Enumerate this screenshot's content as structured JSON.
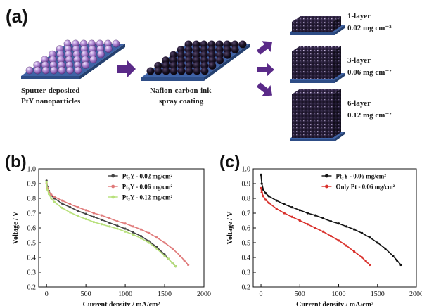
{
  "panel_a": {
    "label": "(a)",
    "step1_caption": [
      "Sputter-deposited",
      "PtY nanoparticles"
    ],
    "step2_caption": [
      "Nafion-carbon-ink",
      "spray coating"
    ],
    "outputs": [
      {
        "title": "1-layer",
        "loading": "0.02 mg cm⁻²"
      },
      {
        "title": "3-layer",
        "loading": "0.06 mg cm⁻²"
      },
      {
        "title": "6-layer",
        "loading": "0.12 mg cm⁻²"
      }
    ],
    "colors": {
      "sphere": "#b58fd6",
      "substrate": "#3f63a6",
      "substrate_side": "#2e4d86",
      "arrow": "#5a2a88",
      "ink": "#151022"
    }
  },
  "chart_data": [
    {
      "label": "(b)",
      "type": "line",
      "xlabel": "Current density / mA/cm²",
      "ylabel": "Voltage / V",
      "xlim": [
        -100,
        2000
      ],
      "ylim": [
        0.2,
        1.0
      ],
      "xticks": [
        0,
        500,
        1000,
        1500,
        2000
      ],
      "yticks": [
        0.2,
        0.3,
        0.4,
        0.5,
        0.6,
        0.7,
        0.8,
        0.9,
        1.0
      ],
      "legend_position": "top-right",
      "series": [
        {
          "name": "Pt₃Y - 0.02 mg/cm²",
          "color": "#444444",
          "marker": "o",
          "x": [
            0,
            10,
            30,
            60,
            100,
            200,
            300,
            400,
            500,
            600,
            700,
            800,
            900,
            1000,
            1100,
            1200,
            1300,
            1400,
            1500,
            1550,
            1600,
            1640
          ],
          "y": [
            0.92,
            0.88,
            0.85,
            0.82,
            0.8,
            0.765,
            0.74,
            0.715,
            0.695,
            0.675,
            0.655,
            0.635,
            0.615,
            0.595,
            0.57,
            0.545,
            0.51,
            0.47,
            0.42,
            0.39,
            0.36,
            0.34
          ]
        },
        {
          "name": "Pt₃Y - 0.06 mg/cm²",
          "color": "#e07a7a",
          "marker": "o",
          "x": [
            0,
            10,
            30,
            60,
            100,
            200,
            300,
            400,
            500,
            600,
            700,
            800,
            900,
            1000,
            1100,
            1200,
            1300,
            1400,
            1500,
            1600,
            1700,
            1750,
            1800
          ],
          "y": [
            0.9,
            0.87,
            0.845,
            0.825,
            0.81,
            0.785,
            0.76,
            0.74,
            0.72,
            0.7,
            0.685,
            0.665,
            0.645,
            0.63,
            0.61,
            0.59,
            0.565,
            0.535,
            0.5,
            0.46,
            0.41,
            0.38,
            0.35
          ]
        },
        {
          "name": "Pt₃Y - 0.12 mg/cm²",
          "color": "#b7e07a",
          "marker": "o",
          "x": [
            0,
            10,
            30,
            60,
            100,
            200,
            300,
            400,
            500,
            600,
            700,
            800,
            900,
            1000,
            1100,
            1200,
            1300,
            1400,
            1500,
            1550,
            1600,
            1640
          ],
          "y": [
            0.91,
            0.86,
            0.83,
            0.8,
            0.775,
            0.735,
            0.705,
            0.68,
            0.66,
            0.64,
            0.625,
            0.61,
            0.595,
            0.575,
            0.555,
            0.53,
            0.5,
            0.46,
            0.41,
            0.39,
            0.36,
            0.34
          ]
        }
      ]
    },
    {
      "label": "(c)",
      "type": "line",
      "xlabel": "Current density / mA/cm²",
      "ylabel": "Voltage / V",
      "xlim": [
        -100,
        2000
      ],
      "ylim": [
        0.2,
        1.0
      ],
      "xticks": [
        0,
        500,
        1000,
        1500,
        2000
      ],
      "yticks": [
        0.2,
        0.3,
        0.4,
        0.5,
        0.6,
        0.7,
        0.8,
        0.9,
        1.0
      ],
      "legend_position": "top-right",
      "series": [
        {
          "name": "Pt₃Y - 0.06 mg/cm²",
          "color": "#111111",
          "marker": "o",
          "x": [
            0,
            10,
            30,
            60,
            100,
            200,
            300,
            400,
            500,
            600,
            700,
            800,
            900,
            1000,
            1100,
            1200,
            1300,
            1400,
            1500,
            1600,
            1700,
            1750,
            1800
          ],
          "y": [
            0.96,
            0.9,
            0.86,
            0.835,
            0.815,
            0.785,
            0.76,
            0.74,
            0.72,
            0.7,
            0.685,
            0.665,
            0.645,
            0.63,
            0.61,
            0.59,
            0.565,
            0.535,
            0.5,
            0.46,
            0.41,
            0.38,
            0.35
          ]
        },
        {
          "name": "Only Pt - 0.06 mg/cm²",
          "color": "#d9302b",
          "marker": "o",
          "x": [
            0,
            10,
            30,
            60,
            100,
            200,
            300,
            400,
            500,
            600,
            700,
            800,
            900,
            1000,
            1100,
            1200,
            1300,
            1350,
            1400
          ],
          "y": [
            0.87,
            0.84,
            0.815,
            0.79,
            0.77,
            0.73,
            0.7,
            0.675,
            0.65,
            0.625,
            0.6,
            0.575,
            0.545,
            0.515,
            0.48,
            0.44,
            0.4,
            0.375,
            0.35
          ]
        }
      ]
    }
  ]
}
